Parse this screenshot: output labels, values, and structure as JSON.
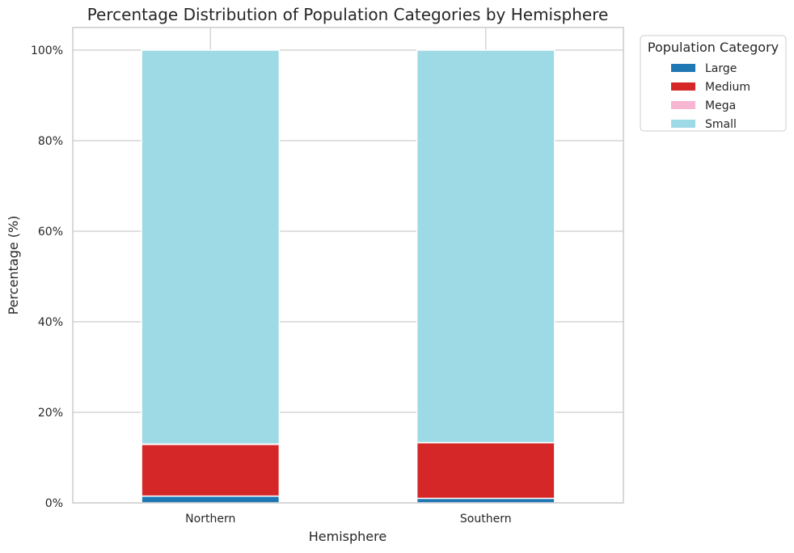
{
  "chart_data": {
    "type": "bar",
    "stacked": true,
    "title": "Percentage Distribution of Population Categories by Hemisphere",
    "xlabel": "Hemisphere",
    "ylabel": "Percentage (%)",
    "categories": [
      "Northern",
      "Southern"
    ],
    "ylim": [
      0,
      105
    ],
    "yticks": [
      0,
      20,
      40,
      60,
      80,
      100
    ],
    "ytick_labels": [
      "0%",
      "20%",
      "40%",
      "60%",
      "80%",
      "100%"
    ],
    "grid": true,
    "legend_title": "Population Category",
    "legend_position": "outside-top-right",
    "series": [
      {
        "name": "Large",
        "color": "#1f77b4",
        "values": [
          1.5,
          1.0
        ]
      },
      {
        "name": "Medium",
        "color": "#d62728",
        "values": [
          11.4,
          12.3
        ]
      },
      {
        "name": "Mega",
        "color": "#f7b6d2",
        "values": [
          0.1,
          0.0
        ]
      },
      {
        "name": "Small",
        "color": "#9edae5",
        "values": [
          87.0,
          86.7
        ]
      }
    ]
  }
}
